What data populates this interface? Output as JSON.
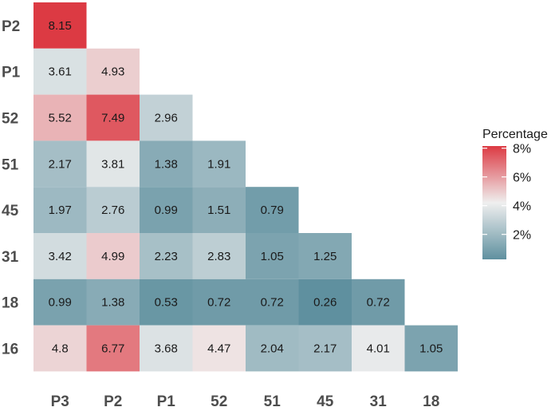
{
  "chart_data": {
    "type": "heatmap",
    "title": "",
    "xlabel": "",
    "ylabel": "",
    "x_categories": [
      "P3",
      "P2",
      "P1",
      "52",
      "51",
      "45",
      "31",
      "18"
    ],
    "y_categories": [
      "P2",
      "P1",
      "52",
      "51",
      "45",
      "31",
      "18",
      "16"
    ],
    "rows": [
      {
        "y": "P2",
        "values": [
          "8.15"
        ]
      },
      {
        "y": "P1",
        "values": [
          "3.61",
          "4.93"
        ]
      },
      {
        "y": "52",
        "values": [
          "5.52",
          "7.49",
          "2.96"
        ]
      },
      {
        "y": "51",
        "values": [
          "2.17",
          "3.81",
          "1.38",
          "1.91"
        ]
      },
      {
        "y": "45",
        "values": [
          "1.97",
          "2.76",
          "0.99",
          "1.51",
          "0.79"
        ]
      },
      {
        "y": "31",
        "values": [
          "3.42",
          "4.99",
          "2.23",
          "2.83",
          "1.05",
          "1.25"
        ]
      },
      {
        "y": "18",
        "values": [
          "0.99",
          "1.38",
          "0.53",
          "0.72",
          "0.72",
          "0.26",
          "0.72"
        ]
      },
      {
        "y": "16",
        "values": [
          "4.8",
          "6.77",
          "3.68",
          "4.47",
          "2.04",
          "2.17",
          "4.01",
          "1.05"
        ]
      }
    ],
    "color_scale": {
      "low_color": "#5f909f",
      "mid_color": "#efefef",
      "high_color": "#dc3a43",
      "low_value": 0.26,
      "mid_value": 4.2,
      "high_value": 8.15
    },
    "legend": {
      "title": "Percentage",
      "placement": "right",
      "ticks": [
        {
          "value": 8,
          "label": "8%"
        },
        {
          "value": 6,
          "label": "6%"
        },
        {
          "value": 4,
          "label": "4%"
        },
        {
          "value": 2,
          "label": "2%"
        }
      ]
    }
  }
}
